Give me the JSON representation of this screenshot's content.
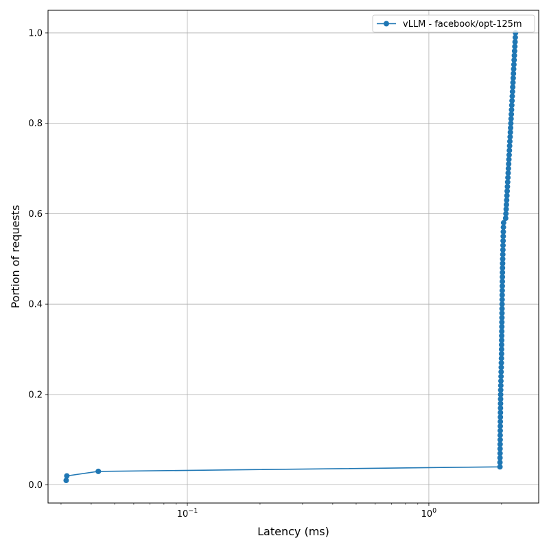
{
  "chart_data": {
    "type": "line",
    "title": "",
    "xlabel": "Latency (ms)",
    "ylabel": "Portion of requests",
    "x_scale": "log",
    "xlim": [
      0.0265,
      2.85
    ],
    "ylim": [
      -0.04,
      1.05
    ],
    "x_ticks": [
      {
        "value": 0.1,
        "base": "10",
        "exp": "−1"
      },
      {
        "value": 1,
        "base": "10",
        "exp": "0"
      }
    ],
    "y_ticks": [
      {
        "value": 0.0,
        "label": "0.0"
      },
      {
        "value": 0.2,
        "label": "0.2"
      },
      {
        "value": 0.4,
        "label": "0.4"
      },
      {
        "value": 0.6,
        "label": "0.6"
      },
      {
        "value": 0.8,
        "label": "0.8"
      },
      {
        "value": 1.0,
        "label": "1.0"
      }
    ],
    "grid": true,
    "legend_position": "top-right",
    "series": [
      {
        "name": "vLLM - facebook/opt-125m",
        "color": "#1f77b4",
        "marker": "circle",
        "x": [
          0.0315,
          0.0317,
          0.0428,
          1.97,
          1.97,
          1.971,
          1.972,
          1.972,
          1.973,
          1.974,
          1.974,
          1.975,
          1.976,
          1.977,
          1.978,
          1.979,
          1.98,
          1.981,
          1.982,
          1.983,
          1.984,
          1.986,
          1.988,
          1.99,
          1.992,
          1.994,
          1.996,
          1.998,
          2.0,
          2.0,
          2.001,
          2.002,
          2.003,
          2.004,
          2.005,
          2.006,
          2.007,
          2.008,
          2.009,
          2.01,
          2.011,
          2.012,
          2.013,
          2.014,
          2.015,
          2.016,
          2.017,
          2.018,
          2.02,
          2.022,
          2.024,
          2.026,
          2.028,
          2.03,
          2.032,
          2.034,
          2.036,
          2.04,
          2.08,
          2.085,
          2.09,
          2.095,
          2.1,
          2.105,
          2.11,
          2.115,
          2.12,
          2.125,
          2.13,
          2.135,
          2.14,
          2.145,
          2.15,
          2.155,
          2.16,
          2.165,
          2.17,
          2.175,
          2.18,
          2.185,
          2.19,
          2.195,
          2.2,
          2.205,
          2.21,
          2.215,
          2.22,
          2.225,
          2.23,
          2.235,
          2.24,
          2.245,
          2.25,
          2.255,
          2.26,
          2.265,
          2.27,
          2.275,
          2.28,
          2.285
        ],
        "y": [
          0.01,
          0.02,
          0.03,
          0.04,
          0.05,
          0.06,
          0.07,
          0.08,
          0.09,
          0.1,
          0.11,
          0.12,
          0.13,
          0.14,
          0.15,
          0.16,
          0.17,
          0.18,
          0.19,
          0.2,
          0.21,
          0.22,
          0.23,
          0.24,
          0.25,
          0.26,
          0.27,
          0.28,
          0.29,
          0.3,
          0.31,
          0.32,
          0.33,
          0.34,
          0.35,
          0.36,
          0.37,
          0.38,
          0.39,
          0.4,
          0.41,
          0.42,
          0.43,
          0.44,
          0.45,
          0.46,
          0.47,
          0.48,
          0.49,
          0.5,
          0.51,
          0.52,
          0.53,
          0.54,
          0.55,
          0.56,
          0.57,
          0.58,
          0.59,
          0.6,
          0.61,
          0.62,
          0.63,
          0.64,
          0.65,
          0.66,
          0.67,
          0.68,
          0.69,
          0.7,
          0.71,
          0.72,
          0.73,
          0.74,
          0.75,
          0.76,
          0.77,
          0.78,
          0.79,
          0.8,
          0.81,
          0.82,
          0.83,
          0.84,
          0.85,
          0.86,
          0.87,
          0.88,
          0.89,
          0.9,
          0.91,
          0.92,
          0.93,
          0.94,
          0.95,
          0.96,
          0.97,
          0.98,
          0.99,
          1.0
        ]
      }
    ]
  }
}
